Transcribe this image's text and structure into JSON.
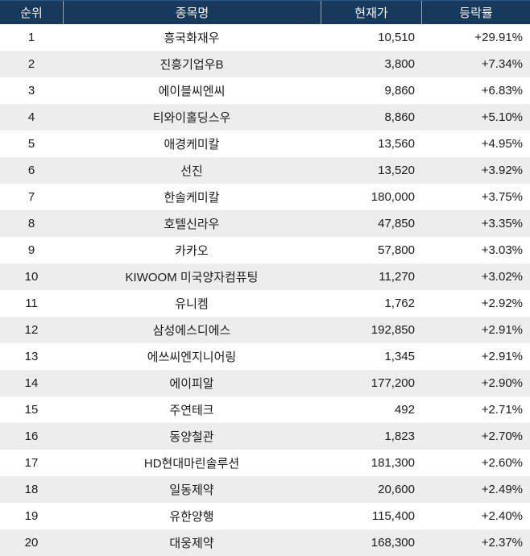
{
  "table": {
    "columns": [
      {
        "key": "rank",
        "label": "순위"
      },
      {
        "key": "name",
        "label": "종목명"
      },
      {
        "key": "price",
        "label": "현재가"
      },
      {
        "key": "change",
        "label": "등락률"
      }
    ],
    "rows": [
      {
        "rank": "1",
        "name": "흥국화재우",
        "price": "10,510",
        "change": "+29.91%"
      },
      {
        "rank": "2",
        "name": "진흥기업우B",
        "price": "3,800",
        "change": "+7.34%"
      },
      {
        "rank": "3",
        "name": "에이블씨엔씨",
        "price": "9,860",
        "change": "+6.83%"
      },
      {
        "rank": "4",
        "name": "티와이홀딩스우",
        "price": "8,860",
        "change": "+5.10%"
      },
      {
        "rank": "5",
        "name": "애경케미칼",
        "price": "13,560",
        "change": "+4.95%"
      },
      {
        "rank": "6",
        "name": "선진",
        "price": "13,520",
        "change": "+3.92%"
      },
      {
        "rank": "7",
        "name": "한솔케미칼",
        "price": "180,000",
        "change": "+3.75%"
      },
      {
        "rank": "8",
        "name": "호텔신라우",
        "price": "47,850",
        "change": "+3.35%"
      },
      {
        "rank": "9",
        "name": "카카오",
        "price": "57,800",
        "change": "+3.03%"
      },
      {
        "rank": "10",
        "name": "KIWOOM 미국양자컴퓨팅",
        "price": "11,270",
        "change": "+3.02%"
      },
      {
        "rank": "11",
        "name": "유니켐",
        "price": "1,762",
        "change": "+2.92%"
      },
      {
        "rank": "12",
        "name": "삼성에스디에스",
        "price": "192,850",
        "change": "+2.91%"
      },
      {
        "rank": "13",
        "name": "에쓰씨엔지니어링",
        "price": "1,345",
        "change": "+2.91%"
      },
      {
        "rank": "14",
        "name": "에이피알",
        "price": "177,200",
        "change": "+2.90%"
      },
      {
        "rank": "15",
        "name": "주연테크",
        "price": "492",
        "change": "+2.71%"
      },
      {
        "rank": "16",
        "name": "동양철관",
        "price": "1,823",
        "change": "+2.70%"
      },
      {
        "rank": "17",
        "name": "HD현대마린솔루션",
        "price": "181,300",
        "change": "+2.60%"
      },
      {
        "rank": "18",
        "name": "일동제약",
        "price": "20,600",
        "change": "+2.49%"
      },
      {
        "rank": "19",
        "name": "유한양행",
        "price": "115,400",
        "change": "+2.40%"
      },
      {
        "rank": "20",
        "name": "대웅제약",
        "price": "168,300",
        "change": "+2.37%"
      }
    ]
  },
  "colors": {
    "header_bg": "#173a5c",
    "header_text": "#f2f5f8",
    "header_divider": "#93a4b6",
    "header_top_line": "#2e5a85",
    "row_bg": "#ffffff",
    "row_alt_bg": "#ededed",
    "body_text": "#1a1a1a"
  }
}
